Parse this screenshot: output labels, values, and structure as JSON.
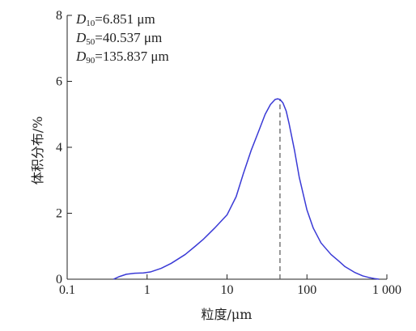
{
  "chart_data": {
    "type": "line",
    "xscale": "log",
    "xlim": [
      0.1,
      1000
    ],
    "ylim": [
      0,
      8
    ],
    "xlabel": "粒度/μm",
    "ylabel": "体积分布/%",
    "xticks": [
      0.1,
      1,
      10,
      100,
      1000
    ],
    "xtick_labels": [
      "0.1",
      "1",
      "10",
      "100",
      "1 000"
    ],
    "yticks": [
      0,
      2,
      4,
      6,
      8
    ],
    "ytick_labels": [
      "0",
      "2",
      "4",
      "6",
      "8"
    ],
    "grid": false,
    "line_color": "#3a3ad6",
    "dashed_marker_x": 46,
    "annotations": [
      {
        "symbol": "D",
        "sub": "10",
        "value": "=6.851 μm"
      },
      {
        "symbol": "D",
        "sub": "50",
        "value": "=40.537 μm"
      },
      {
        "symbol": "D",
        "sub": "90",
        "value": "=135.837 μm"
      }
    ],
    "series": [
      {
        "x": [
          0.38,
          0.45,
          0.55,
          0.7,
          0.9,
          1.1,
          1.5,
          2,
          3,
          4,
          5,
          7,
          10,
          13,
          16,
          20,
          25,
          30,
          35,
          40,
          43,
          46,
          50,
          55,
          60,
          70,
          80,
          100,
          120,
          150,
          200,
          250,
          300,
          400,
          500,
          600,
          700,
          800
        ],
        "y": [
          0.0,
          0.08,
          0.15,
          0.18,
          0.19,
          0.22,
          0.33,
          0.48,
          0.75,
          1.0,
          1.2,
          1.55,
          1.95,
          2.5,
          3.2,
          3.9,
          4.5,
          5.0,
          5.3,
          5.45,
          5.47,
          5.45,
          5.35,
          5.1,
          4.7,
          3.9,
          3.1,
          2.1,
          1.55,
          1.1,
          0.75,
          0.55,
          0.38,
          0.2,
          0.1,
          0.05,
          0.02,
          0.0
        ]
      }
    ]
  }
}
